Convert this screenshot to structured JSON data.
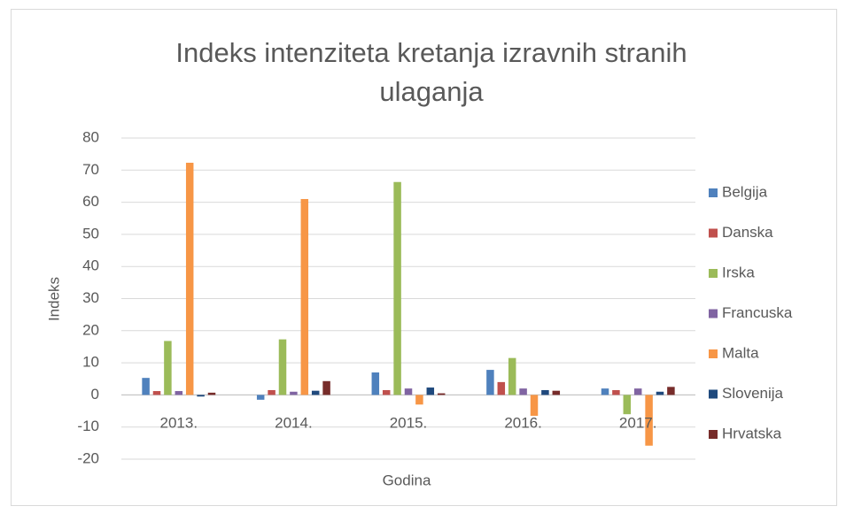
{
  "chart_data": {
    "type": "bar",
    "title": "Indeks intenziteta kretanja izravnih stranih ulaganja",
    "x_label": "Godina",
    "y_label": "Indeks",
    "categories": [
      "2013.",
      "2014.",
      "2015.",
      "2016.",
      "2017."
    ],
    "series": [
      {
        "name": "Belgija",
        "color": "#4f81bd",
        "values": [
          5.3,
          -1.5,
          7,
          7.8,
          2
        ]
      },
      {
        "name": "Danska",
        "color": "#c0504d",
        "values": [
          1.2,
          1.5,
          1.5,
          4,
          1.5
        ]
      },
      {
        "name": "Irska",
        "color": "#9bbb59",
        "values": [
          16.8,
          17.3,
          66.3,
          11.5,
          -6
        ]
      },
      {
        "name": "Francuska",
        "color": "#8064a2",
        "values": [
          1.2,
          1,
          2,
          2,
          2
        ]
      },
      {
        "name": "Malta",
        "color": "#f79646",
        "values": [
          72.3,
          61,
          -3,
          -6.5,
          -15.8
        ]
      },
      {
        "name": "Slovenija",
        "color": "#1f497d",
        "values": [
          -0.5,
          1.3,
          2.3,
          1.5,
          1
        ]
      },
      {
        "name": "Hrvatska",
        "color": "#772c2a",
        "values": [
          0.7,
          4.3,
          0.5,
          1.3,
          2.5
        ]
      }
    ],
    "ylim": [
      -20,
      80
    ],
    "yticks": [
      -20,
      -10,
      0,
      10,
      20,
      30,
      40,
      50,
      60,
      70,
      80
    ],
    "grid": true,
    "legend": "right"
  }
}
